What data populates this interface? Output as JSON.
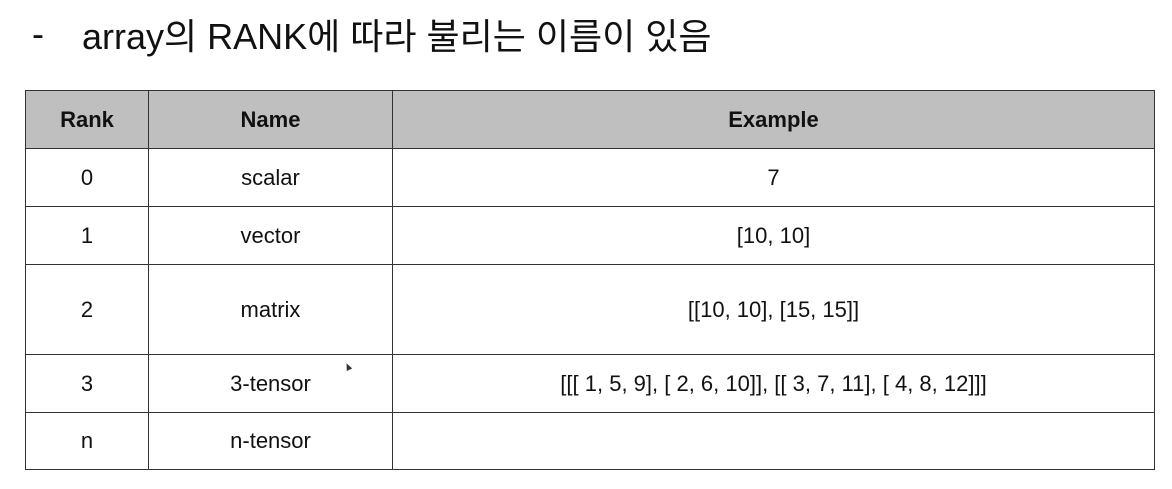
{
  "heading": {
    "bullet": "-",
    "text": "array의 RANK에 따라 불리는 이름이 있음"
  },
  "table": {
    "headers": {
      "rank": "Rank",
      "name": "Name",
      "example": "Example"
    },
    "rows": [
      {
        "rank": "0",
        "name": "scalar",
        "example": "7"
      },
      {
        "rank": "1",
        "name": "vector",
        "example": "[10, 10]"
      },
      {
        "rank": "2",
        "name": "matrix",
        "example": "[[10, 10], [15, 15]]"
      },
      {
        "rank": "3",
        "name": "3-tensor",
        "example": "[[[ 1, 5, 9], [ 2, 6, 10]], [[ 3, 7, 11], [ 4, 8, 12]]]"
      },
      {
        "rank": "n",
        "name": "n-tensor",
        "example": ""
      }
    ]
  },
  "colors": {
    "header_background": "#bfbfbf",
    "border": "#333333",
    "text": "#111111"
  }
}
